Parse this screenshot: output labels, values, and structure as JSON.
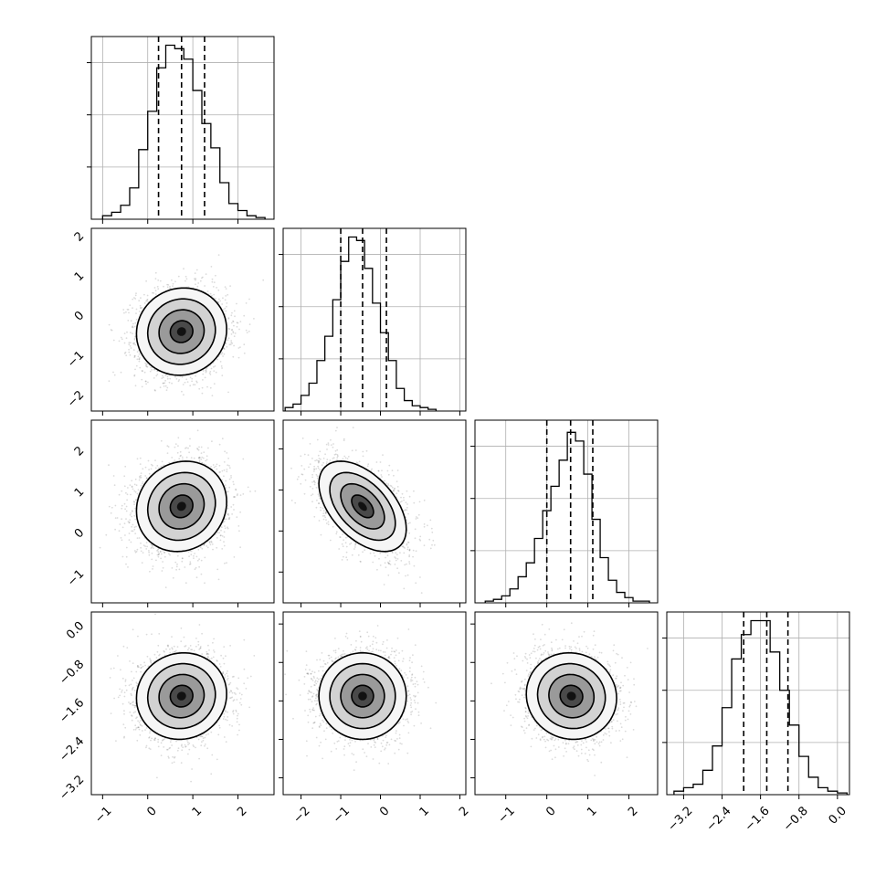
{
  "chart_data": {
    "type": "corner",
    "n_params": 4,
    "grid": true,
    "parameters": [
      {
        "range": [
          -1.25,
          2.8
        ],
        "ticks": [
          -1,
          0,
          1,
          2
        ],
        "tick_labels": [
          "−1",
          "0",
          "1",
          "2"
        ],
        "mean": 0.75,
        "std": 0.5,
        "quantiles": [
          0.24,
          0.75,
          1.26
        ],
        "hist_bins": [
          -1.0,
          -0.8,
          -0.6,
          -0.4,
          -0.2,
          0.0,
          0.2,
          0.4,
          0.6,
          0.8,
          1.0,
          1.2,
          1.4,
          1.6,
          1.8,
          2.0,
          2.2,
          2.4,
          2.6
        ],
        "hist_counts": [
          0.02,
          0.04,
          0.08,
          0.18,
          0.4,
          0.62,
          0.87,
          1.0,
          0.98,
          0.92,
          0.74,
          0.55,
          0.41,
          0.21,
          0.09,
          0.05,
          0.02,
          0.01
        ],
        "hist_max": 1.05
      },
      {
        "range": [
          -2.45,
          2.15
        ],
        "ticks": [
          -2,
          -1,
          0,
          1,
          2
        ],
        "tick_labels": [
          "−2",
          "−1",
          "0",
          "1",
          "2"
        ],
        "mean": -0.45,
        "std": 0.55,
        "quantiles": [
          -1.0,
          -0.45,
          0.15
        ],
        "hist_bins": [
          -2.4,
          -2.2,
          -2.0,
          -1.8,
          -1.6,
          -1.4,
          -1.2,
          -1.0,
          -0.8,
          -0.6,
          -0.4,
          -0.2,
          0.0,
          0.2,
          0.4,
          0.6,
          0.8,
          1.0,
          1.2,
          1.4
        ],
        "hist_counts": [
          0.02,
          0.04,
          0.09,
          0.16,
          0.29,
          0.43,
          0.64,
          0.86,
          1.0,
          0.98,
          0.82,
          0.62,
          0.45,
          0.29,
          0.13,
          0.06,
          0.03,
          0.02,
          0.01
        ],
        "hist_max": 1.05
      },
      {
        "range": [
          -1.75,
          2.7
        ],
        "ticks": [
          -1,
          0,
          1,
          2
        ],
        "tick_labels": [
          "−1",
          "0",
          "1",
          "2"
        ],
        "mean": 0.6,
        "std": 0.55,
        "quantiles": [
          0.0,
          0.58,
          1.12
        ],
        "hist_bins": [
          -1.5,
          -1.3,
          -1.1,
          -0.9,
          -0.7,
          -0.5,
          -0.3,
          -0.1,
          0.1,
          0.3,
          0.5,
          0.7,
          0.9,
          1.1,
          1.3,
          1.5,
          1.7,
          1.9,
          2.1,
          2.3,
          2.5
        ],
        "hist_counts": [
          0.01,
          0.02,
          0.04,
          0.08,
          0.15,
          0.23,
          0.37,
          0.53,
          0.67,
          0.82,
          0.98,
          0.93,
          0.74,
          0.48,
          0.26,
          0.13,
          0.06,
          0.03,
          0.01,
          0.01
        ],
        "hist_max": 1.05
      },
      {
        "range": [
          -3.55,
          0.25
        ],
        "ticks": [
          -3.2,
          -2.4,
          -1.6,
          -0.8,
          0.0
        ],
        "tick_labels": [
          "−3.2",
          "−2.4",
          "−1.6",
          "−0.8",
          "0.0"
        ],
        "mean": -1.5,
        "std": 0.45,
        "quantiles": [
          -1.95,
          -1.47,
          -1.03
        ],
        "hist_bins": [
          -3.4,
          -3.2,
          -3.0,
          -2.8,
          -2.6,
          -2.4,
          -2.2,
          -2.0,
          -1.8,
          -1.6,
          -1.4,
          -1.2,
          -1.0,
          -0.8,
          -0.6,
          -0.4,
          -0.2,
          0.0,
          0.2
        ],
        "hist_counts": [
          0.02,
          0.04,
          0.06,
          0.14,
          0.28,
          0.5,
          0.78,
          0.92,
          1.0,
          1.0,
          0.82,
          0.6,
          0.4,
          0.22,
          0.1,
          0.04,
          0.02,
          0.01
        ],
        "hist_max": 1.05
      }
    ],
    "correlations": [
      [
        1.0,
        0.05,
        0.1,
        0.05
      ],
      [
        0.05,
        1.0,
        -0.5,
        0.0
      ],
      [
        0.1,
        -0.5,
        1.0,
        -0.05
      ],
      [
        0.05,
        0.0,
        -0.05,
        1.0
      ]
    ],
    "contour_levels_sigma": [
      0.5,
      1.0,
      1.5,
      2.0
    ]
  }
}
